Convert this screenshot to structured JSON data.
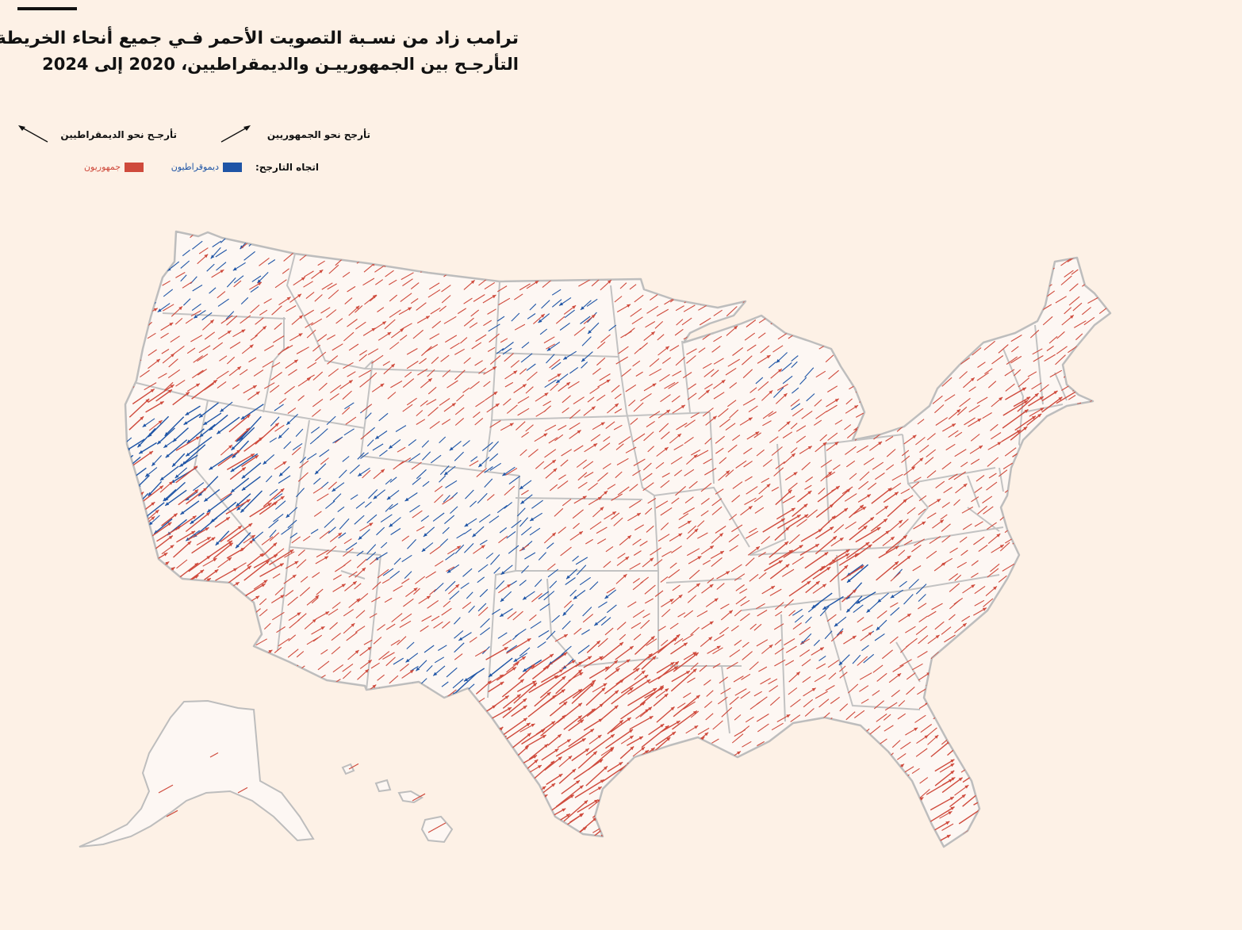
{
  "title": "ترامب زاد من نسـبة التصويت الأحمر فـي جميع أنحاء الخريطة",
  "subtitle": "التأرجـح بين الجمهورييـن والديمقراطيين، 2020 إلى 2024",
  "legend": {
    "toward_dem": "تأرجـح نحو الديمقراطيين",
    "toward_rep": "تأرجح نحو الجمهوريين",
    "direction_label": "اتجاه التارجح:",
    "dem_label": "ديموقراطيون",
    "rep_label": "جمهوريون"
  },
  "colors": {
    "background": "#fdf1e6",
    "land": "#fdf7f3",
    "border": "#c2c2c2",
    "republican": "#cf4a3c",
    "democrat": "#1f55a6"
  }
}
